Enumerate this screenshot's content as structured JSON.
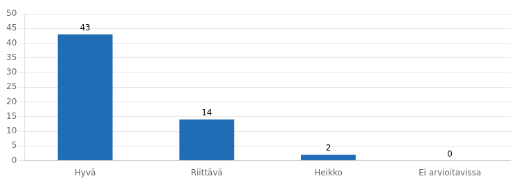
{
  "chart_data": {
    "type": "bar",
    "categories": [
      "Hyvä",
      "Riittävä",
      "Heikko",
      "Ei arvioitavissa"
    ],
    "values": [
      43,
      14,
      2,
      0
    ],
    "color": "#1F6EB5",
    "ylim": [
      0,
      50
    ],
    "yticks": [
      0,
      5,
      10,
      15,
      20,
      25,
      30,
      35,
      40,
      45,
      50
    ],
    "grid": true,
    "data_labels": true
  }
}
